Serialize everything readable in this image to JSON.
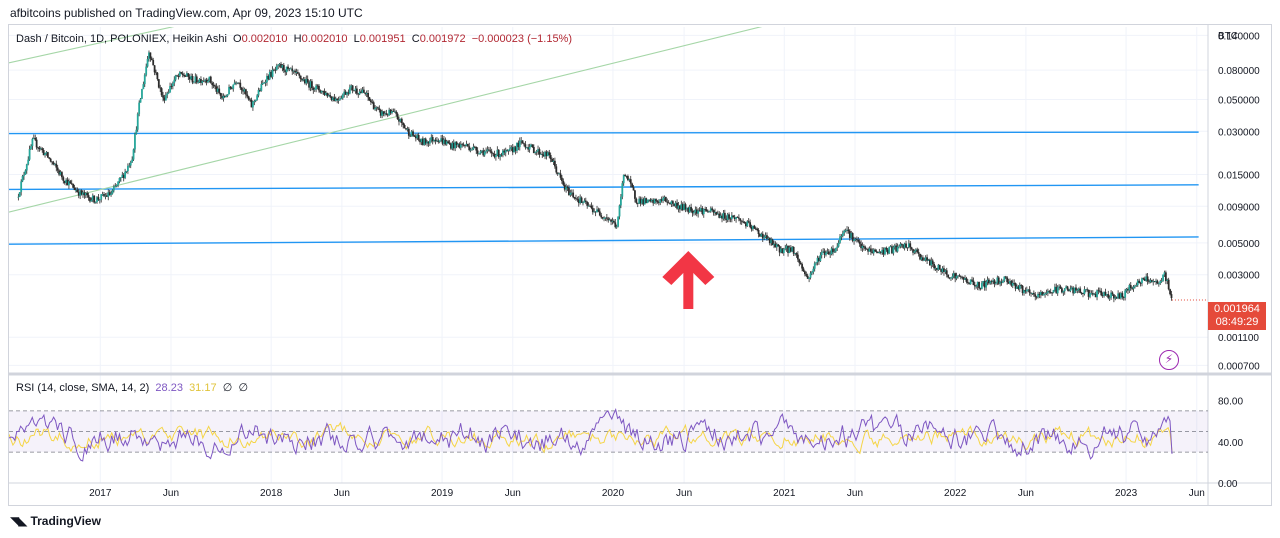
{
  "header": {
    "published": "afbitcoins published on TradingView.com, Apr 09, 2023 15:10 UTC"
  },
  "legend": {
    "symbol": "Dash / Bitcoin, 1D, POLONIEX, Heikin Ashi",
    "o_label": "O",
    "o": "0.002010",
    "h_label": "H",
    "h": "0.002010",
    "l_label": "L",
    "l": "0.001951",
    "c_label": "C",
    "c": "0.001972",
    "change": "−0.000023 (−1.15%)"
  },
  "rsi_legend": {
    "label": "RSI (14, close, SMA, 14, 2)",
    "rsi": "28.23",
    "sma": "31.17",
    "ind1": "∅",
    "ind2": "∅"
  },
  "price_tag": {
    "price": "0.001964",
    "countdown": "08:49:29"
  },
  "axis_unit": "BTC",
  "footer": {
    "brand": "TradingView"
  },
  "colors": {
    "up": "#26a69a",
    "down": "#ef5350",
    "candle": "#2b2b2b",
    "hline": "#2196f3",
    "channel": "#a5d6a7",
    "rsi": "#7e57c2",
    "rsi_sma": "#f5d547",
    "arrow": "#f23645"
  },
  "chart_data": [
    {
      "type": "line",
      "role": "price",
      "scale": "log",
      "ylim": [
        0.00065,
        0.16
      ],
      "y_ticks": [
        "0.140000",
        "0.080000",
        "0.050000",
        "0.030000",
        "0.015000",
        "0.009000",
        "0.005000",
        "0.003000",
        "0.001100",
        "0.000700"
      ],
      "y_tick_values": [
        0.14,
        0.08,
        0.05,
        0.03,
        0.015,
        0.009,
        0.005,
        0.003,
        0.0011,
        0.0007
      ],
      "x_ticks": [
        "2017",
        "Jun",
        "2018",
        "Jun",
        "2019",
        "Jun",
        "2020",
        "Jun",
        "2021",
        "Jun",
        "2022",
        "Jun",
        "2023",
        "Jun"
      ],
      "x_tick_dates": [
        "2017-01-01",
        "2017-06-01",
        "2018-01-01",
        "2018-06-01",
        "2019-01-01",
        "2019-06-01",
        "2020-01-01",
        "2020-06-01",
        "2021-01-01",
        "2021-06-01",
        "2022-01-01",
        "2022-06-01",
        "2023-01-01",
        "2023-06-01"
      ],
      "series": [
        {
          "dates": [
            "2016-07-10",
            "2016-08-10",
            "2016-09-10",
            "2016-10-15",
            "2016-11-20",
            "2016-12-20",
            "2017-01-25",
            "2017-02-25",
            "2017-03-10",
            "2017-03-25",
            "2017-04-15",
            "2017-05-15",
            "2017-06-10",
            "2017-06-25",
            "2017-07-20",
            "2017-08-20",
            "2017-09-20",
            "2017-10-20",
            "2017-11-20",
            "2017-12-20",
            "2018-01-20",
            "2018-02-20",
            "2018-03-20",
            "2018-04-20",
            "2018-05-20",
            "2018-06-20",
            "2018-07-20",
            "2018-08-20",
            "2018-09-20",
            "2018-10-20",
            "2018-11-20",
            "2018-12-20",
            "2019-01-20",
            "2019-02-20",
            "2019-03-20",
            "2019-04-20",
            "2019-05-20",
            "2019-06-20",
            "2019-07-20",
            "2019-08-20",
            "2019-09-20",
            "2019-10-20",
            "2019-11-20",
            "2019-12-20",
            "2020-01-10",
            "2020-01-25",
            "2020-02-20",
            "2020-03-20",
            "2020-04-20",
            "2020-05-20",
            "2020-06-20",
            "2020-07-20",
            "2020-08-20",
            "2020-09-20",
            "2020-10-20",
            "2020-11-20",
            "2020-12-20",
            "2021-01-20",
            "2021-02-20",
            "2021-03-20",
            "2021-04-20",
            "2021-05-10",
            "2021-05-25",
            "2021-06-20",
            "2021-07-20",
            "2021-08-20",
            "2021-09-20",
            "2021-10-20",
            "2021-11-20",
            "2021-12-20",
            "2022-01-20",
            "2022-02-20",
            "2022-03-20",
            "2022-04-20",
            "2022-05-20",
            "2022-06-20",
            "2022-07-20",
            "2022-08-20",
            "2022-09-20",
            "2022-10-20",
            "2022-11-20",
            "2022-12-20",
            "2023-01-20",
            "2023-02-20",
            "2023-03-10",
            "2023-03-25",
            "2023-04-09"
          ],
          "close": [
            0.011,
            0.026,
            0.02,
            0.014,
            0.011,
            0.01,
            0.011,
            0.016,
            0.02,
            0.045,
            0.11,
            0.05,
            0.07,
            0.075,
            0.068,
            0.07,
            0.05,
            0.07,
            0.045,
            0.07,
            0.085,
            0.075,
            0.065,
            0.057,
            0.05,
            0.06,
            0.055,
            0.04,
            0.04,
            0.03,
            0.025,
            0.027,
            0.024,
            0.024,
            0.022,
            0.021,
            0.021,
            0.025,
            0.022,
            0.02,
            0.012,
            0.01,
            0.0085,
            0.0075,
            0.0065,
            0.016,
            0.01,
            0.0095,
            0.01,
            0.009,
            0.0085,
            0.0084,
            0.0077,
            0.0075,
            0.0065,
            0.0055,
            0.0045,
            0.0045,
            0.0028,
            0.0042,
            0.0045,
            0.0065,
            0.0055,
            0.0045,
            0.0043,
            0.0045,
            0.0048,
            0.004,
            0.0034,
            0.003,
            0.0028,
            0.0025,
            0.0027,
            0.0028,
            0.0024,
            0.0021,
            0.0023,
            0.0024,
            0.0023,
            0.0022,
            0.0022,
            0.0021,
            0.0026,
            0.0028,
            0.0025,
            0.003,
            0.002
          ]
        }
      ],
      "reference_lines": [
        {
          "type": "horizontal",
          "from": [
            "2016-06-20",
            0.0289
          ],
          "to": [
            "2023-06-05",
            0.0296
          ]
        },
        {
          "type": "horizontal",
          "from": [
            "2016-06-20",
            0.0118
          ],
          "to": [
            "2023-06-05",
            0.0127
          ]
        },
        {
          "type": "horizontal",
          "from": [
            "2016-06-20",
            0.0049
          ],
          "to": [
            "2023-06-05",
            0.0055
          ]
        },
        {
          "type": "trend",
          "from": [
            "2016-06-20",
            0.09
          ],
          "to": [
            "2020-03-01",
            0.84
          ]
        },
        {
          "type": "trend",
          "from": [
            "2016-06-20",
            0.0082
          ],
          "to": [
            "2021-05-01",
            0.22
          ]
        }
      ],
      "annotations": [
        {
          "type": "arrow-up",
          "at": [
            "2020-06-10",
            0.0028
          ]
        }
      ]
    },
    {
      "type": "line",
      "role": "oscillator",
      "ylim": [
        0,
        100
      ],
      "y_ticks": [
        "80.00",
        "40.00",
        "0.00"
      ],
      "y_tick_values": [
        80,
        40,
        0
      ],
      "bands": [
        30,
        50,
        70
      ],
      "series": [
        {
          "name": "RSI",
          "seed": 7,
          "base": 45,
          "amp": 22,
          "last": 28.23
        },
        {
          "name": "SMA",
          "seed": 11,
          "base": 45,
          "amp": 14,
          "last": 31.17
        }
      ]
    }
  ]
}
